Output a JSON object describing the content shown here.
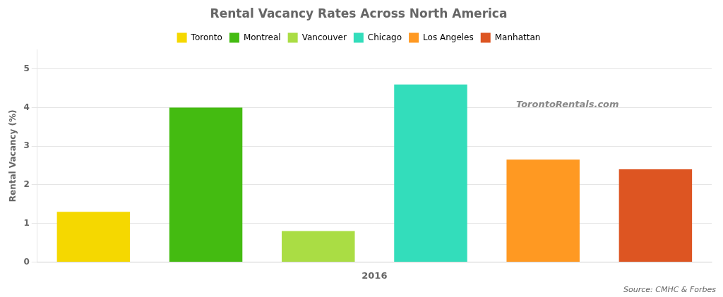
{
  "chart_data": {
    "type": "bar",
    "title": "Rental Vacancy Rates Across North America",
    "categories": [
      "Toronto",
      "Montreal",
      "Vancouver",
      "Chicago",
      "Los Angeles",
      "Manhattan"
    ],
    "values": [
      1.3,
      4.0,
      0.8,
      4.6,
      2.65,
      2.4
    ],
    "colors": [
      "#F5D800",
      "#44BB11",
      "#AADD44",
      "#33DDBB",
      "#FF9922",
      "#DD5522"
    ],
    "xlabel": "2016",
    "ylabel": "Rental Vacancy (%)",
    "ylim": [
      0,
      5.5
    ],
    "yticks": [
      0,
      1,
      2,
      3,
      4,
      5
    ],
    "grid": true,
    "legend": "top",
    "tick_labels": "y",
    "annotations": [
      "TorontoRentals.com",
      "Source: CMHC & Forbes"
    ]
  }
}
